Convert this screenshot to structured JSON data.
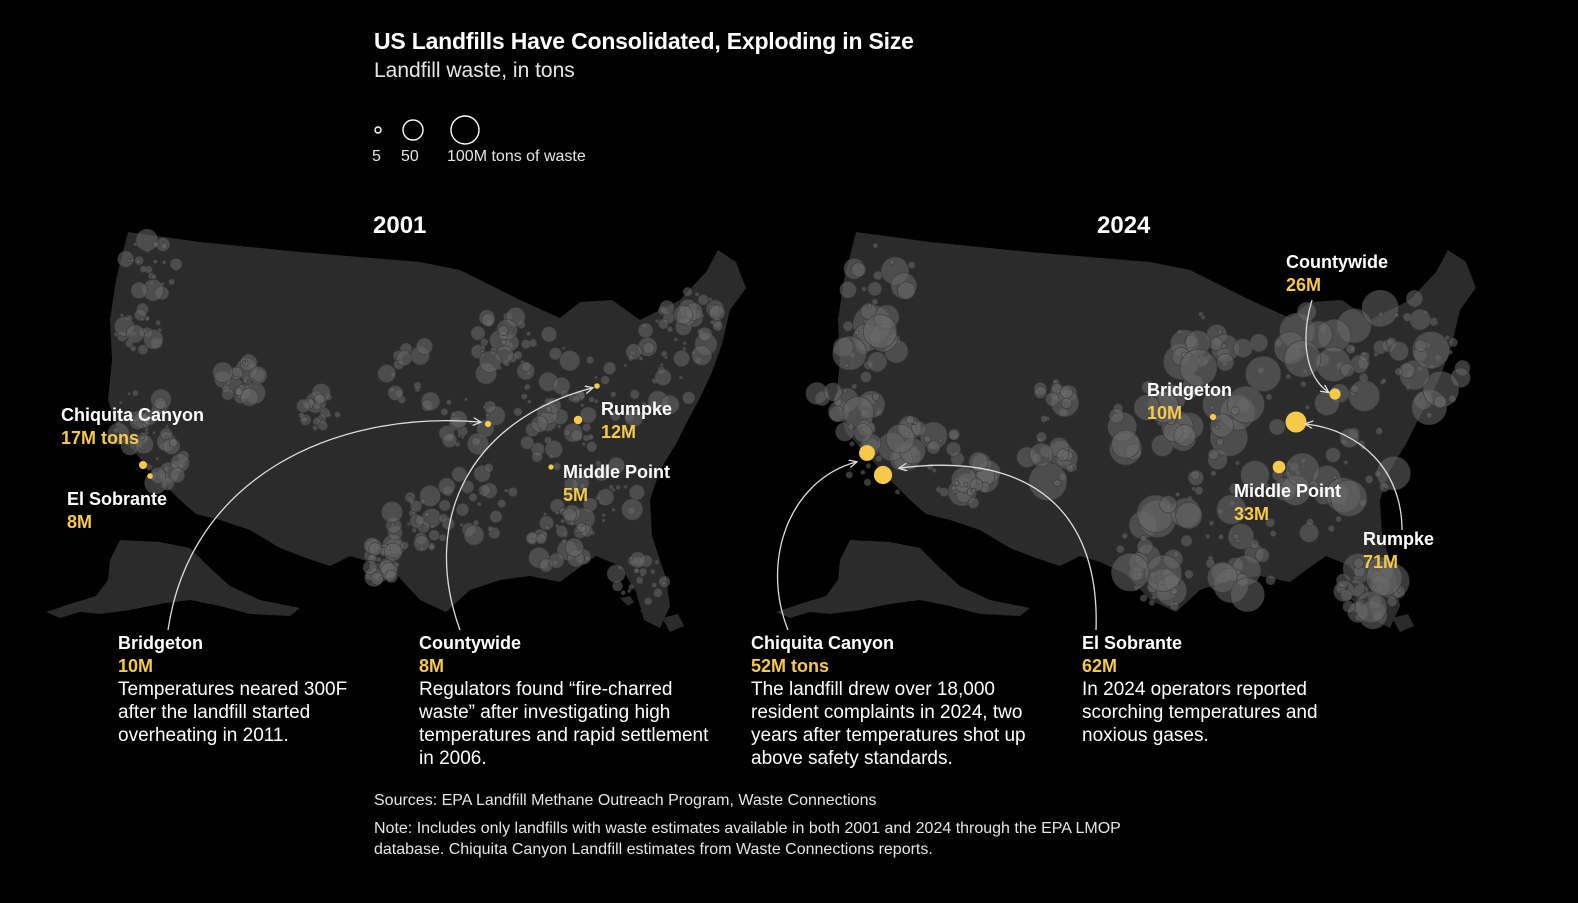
{
  "title": "US Landfills Have Consolidated, Exploding in Size",
  "subtitle": "Landfill waste, in tons",
  "legend": {
    "labels": [
      "5",
      "50",
      "100M tons of waste"
    ],
    "values": [
      5,
      50,
      100
    ],
    "stroke_color": "#ffffff"
  },
  "colors": {
    "background": "#000000",
    "land": "#2b2b2b",
    "bubble": "#6a6a6a",
    "highlight": "#f7c948",
    "text": "#ffffff"
  },
  "maps": [
    {
      "year": "2001",
      "landfills": [
        {
          "name": "Chiquita Canyon",
          "value": "17M tons",
          "tons_m": 17
        },
        {
          "name": "El Sobrante",
          "value": "8M",
          "tons_m": 8
        },
        {
          "name": "Rumpke",
          "value": "12M",
          "tons_m": 12
        },
        {
          "name": "Middle Point",
          "value": "5M",
          "tons_m": 5
        },
        {
          "name": "Bridgeton",
          "value": "10M",
          "tons_m": 10,
          "description": "Temperatures neared 300F after the landfill started overheating in 2011."
        },
        {
          "name": "Countywide",
          "value": "8M",
          "tons_m": 8,
          "description": "Regulators found “fire-charred waste” after investigating high temperatures and rapid settlement in 2006."
        }
      ]
    },
    {
      "year": "2024",
      "landfills": [
        {
          "name": "Countywide",
          "value": "26M",
          "tons_m": 26
        },
        {
          "name": "Bridgeton",
          "value": "10M",
          "tons_m": 10
        },
        {
          "name": "Middle Point",
          "value": "33M",
          "tons_m": 33
        },
        {
          "name": "Rumpke",
          "value": "71M",
          "tons_m": 71
        },
        {
          "name": "Chiquita Canyon",
          "value": "52M tons",
          "tons_m": 52,
          "description": "The landfill drew over 18,000 resident complaints in 2024, two years after temperatures shot up above safety standards."
        },
        {
          "name": "El Sobrante",
          "value": "62M",
          "tons_m": 62,
          "description": "In 2024 operators reported scorching temperatures and noxious gases."
        }
      ]
    }
  ],
  "sources": "Sources: EPA Landfill Methane Outreach Program, Waste Connections",
  "note": "Note: Includes only landfills with waste estimates available in both 2001 and 2024 through the EPA LMOP database. Chiquita Canyon Landfill estimates from Waste Connections reports."
}
